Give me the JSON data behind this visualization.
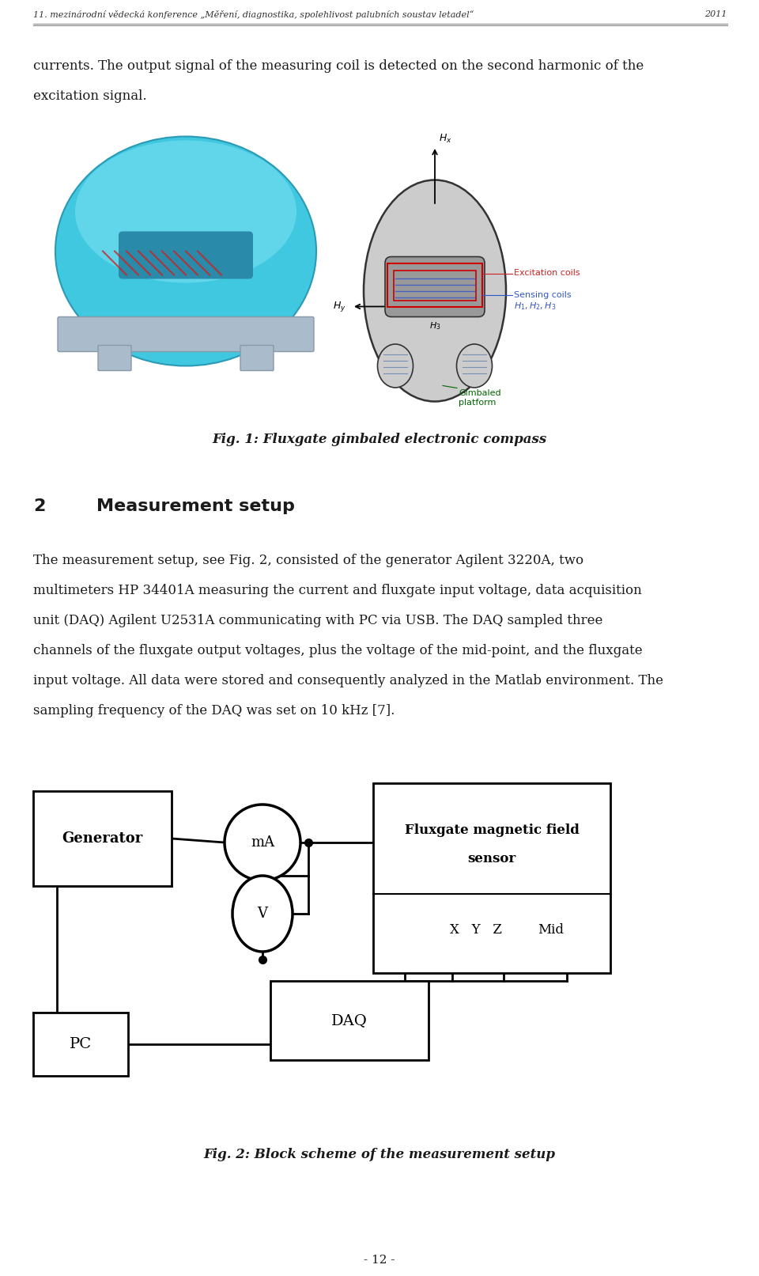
{
  "header_text": "11. mezinárodní vědecká konference „Měření, diagnostika, spolehlivost palubních soustav letadel“",
  "header_year": "2011",
  "para1_line1": "currents. The output signal of the measuring coil is detected on the second harmonic of the",
  "para1_line2": "excitation signal.",
  "fig1_caption": "Fig. 1: Fluxgate gimbaled electronic compass",
  "section_num": "2",
  "section_title": "Measurement setup",
  "para2_lines": [
    "The measurement setup, see Fig. 2, consisted of the generator Agilent 3220A, two",
    "multimeters HP 34401A measuring the current and fluxgate input voltage, data acquisition",
    "unit (DAQ) Agilent U2531A communicating with PC via USB. The DAQ sampled three",
    "channels of the fluxgate output voltages, plus the voltage of the mid-point, and the fluxgate",
    "input voltage. All data were stored and consequently analyzed in the Matlab environment. The",
    "sampling frequency of the DAQ was set on 10 kHz [7]."
  ],
  "fig2_caption": "Fig. 2: Block scheme of the measurement setup",
  "page_number": "- 12 -",
  "box_generator": "Generator",
  "box_ma": "mA",
  "box_v": "V",
  "box_fluxgate_line1": "Fluxgate magnetic field",
  "box_fluxgate_line2": "sensor",
  "box_xyz": "X   Y   Z",
  "box_mid": "Mid",
  "box_pc": "PC",
  "box_daq": "DAQ",
  "bg_color": "#ffffff",
  "text_color": "#1a1a1a",
  "line_color": "#000000",
  "header_color": "#333333"
}
